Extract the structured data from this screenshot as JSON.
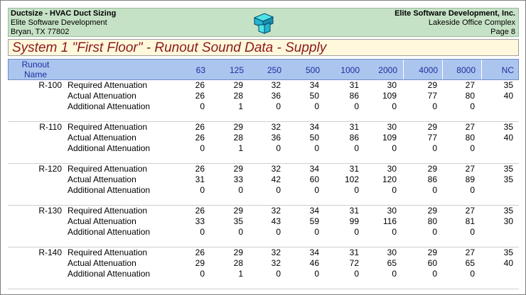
{
  "header": {
    "app_title": "Ductsize - HVAC Duct Sizing",
    "company_left": "Elite Software Development",
    "city_left": "Bryan, TX 77802",
    "company_right": "Elite Software Development, Inc.",
    "project": "Lakeside Office Complex",
    "page": "Page 8",
    "logo_icon": "duct-logo-icon"
  },
  "title": "System 1 \"First Floor\" - Runout Sound Data - Supply",
  "columns": {
    "runout_line1": "Runout",
    "runout_line2": "Name",
    "freqs": [
      "63",
      "125",
      "250",
      "500",
      "1000",
      "2000",
      "4000",
      "8000",
      "NC"
    ]
  },
  "row_labels": [
    "Required Attenuation",
    "Actual Attenuation",
    "Additional Attenuation"
  ],
  "groups": [
    {
      "name": "R-100",
      "required": [
        "26",
        "29",
        "32",
        "34",
        "31",
        "30",
        "29",
        "27",
        "35"
      ],
      "actual": [
        "26",
        "28",
        "36",
        "50",
        "86",
        "109",
        "77",
        "80",
        "40"
      ],
      "additional": [
        "0",
        "1",
        "0",
        "0",
        "0",
        "0",
        "0",
        "0",
        ""
      ]
    },
    {
      "name": "R-110",
      "required": [
        "26",
        "29",
        "32",
        "34",
        "31",
        "30",
        "29",
        "27",
        "35"
      ],
      "actual": [
        "26",
        "28",
        "36",
        "50",
        "86",
        "109",
        "77",
        "80",
        "40"
      ],
      "additional": [
        "0",
        "1",
        "0",
        "0",
        "0",
        "0",
        "0",
        "0",
        ""
      ]
    },
    {
      "name": "R-120",
      "required": [
        "26",
        "29",
        "32",
        "34",
        "31",
        "30",
        "29",
        "27",
        "35"
      ],
      "actual": [
        "31",
        "33",
        "42",
        "60",
        "102",
        "120",
        "86",
        "89",
        "35"
      ],
      "additional": [
        "0",
        "0",
        "0",
        "0",
        "0",
        "0",
        "0",
        "0",
        ""
      ]
    },
    {
      "name": "R-130",
      "required": [
        "26",
        "29",
        "32",
        "34",
        "31",
        "30",
        "29",
        "27",
        "35"
      ],
      "actual": [
        "33",
        "35",
        "43",
        "59",
        "99",
        "116",
        "80",
        "81",
        "30"
      ],
      "additional": [
        "0",
        "0",
        "0",
        "0",
        "0",
        "0",
        "0",
        "0",
        ""
      ]
    },
    {
      "name": "R-140",
      "required": [
        "26",
        "29",
        "32",
        "34",
        "31",
        "30",
        "29",
        "27",
        "35"
      ],
      "actual": [
        "29",
        "28",
        "32",
        "46",
        "72",
        "65",
        "60",
        "65",
        "40"
      ],
      "additional": [
        "0",
        "1",
        "0",
        "0",
        "0",
        "0",
        "0",
        "0",
        ""
      ]
    }
  ]
}
